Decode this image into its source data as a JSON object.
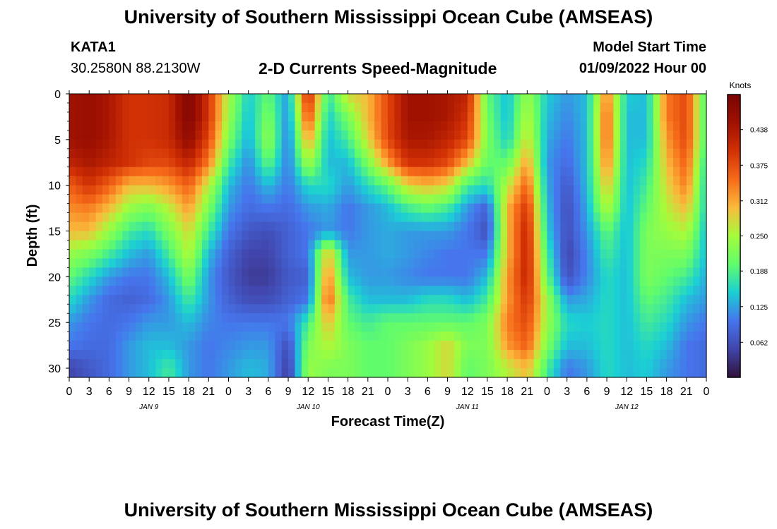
{
  "header": {
    "title": "University of Southern Mississippi Ocean Cube (AMSEAS)",
    "station_id": "KATA1",
    "station_coords": "30.2580N  88.2130W",
    "model_start_label": "Model Start Time",
    "model_start_value": "01/09/2022 Hour 00"
  },
  "footer": {
    "title": "University of Southern Mississippi Ocean Cube (AMSEAS)"
  },
  "chart_data": {
    "type": "heatmap",
    "title": "2-D Currents Speed-Magnitude",
    "xlabel": "Forecast Time(Z)",
    "ylabel": "Depth (ft)",
    "colorbar_label": "Knots",
    "x_hours": [
      0,
      3,
      6,
      9,
      12,
      15,
      18,
      21,
      24,
      27,
      30,
      33,
      36,
      39,
      42,
      45,
      48,
      51,
      54,
      57,
      60,
      63,
      66,
      69,
      72,
      75,
      78,
      81,
      84,
      87,
      90,
      93,
      96
    ],
    "depth_ft": [
      0,
      2.5,
      5,
      7.5,
      10,
      12.5,
      15,
      17.5,
      20,
      22.5,
      25,
      27.5,
      30
    ],
    "x_tick_labels": [
      "0",
      "3",
      "6",
      "9",
      "12",
      "15",
      "18",
      "21",
      "0",
      "3",
      "6",
      "9",
      "12",
      "15",
      "18",
      "21",
      "0",
      "3",
      "6",
      "9",
      "12",
      "15",
      "18",
      "21",
      "0",
      "3",
      "6",
      "9",
      "12",
      "15",
      "18",
      "21",
      "0"
    ],
    "day_labels": [
      {
        "hour": 12,
        "label": "JAN 9"
      },
      {
        "hour": 36,
        "label": "JAN 10"
      },
      {
        "hour": 60,
        "label": "JAN 11"
      },
      {
        "hour": 84,
        "label": "JAN 12"
      }
    ],
    "y_ticks": [
      0,
      5,
      10,
      15,
      20,
      25,
      30
    ],
    "ylim": [
      31,
      0
    ],
    "xlim": [
      0,
      96
    ],
    "colorbar_ticks": [
      0.062,
      0.125,
      0.188,
      0.25,
      0.312,
      0.375,
      0.438
    ],
    "colorbar_range": [
      0.0,
      0.5
    ],
    "values": [
      [
        0.45,
        0.46,
        0.44,
        0.4,
        0.4,
        0.41,
        0.49,
        0.4,
        0.25,
        0.15,
        0.2,
        0.12,
        0.42,
        0.17,
        0.28,
        0.3,
        0.38,
        0.45,
        0.45,
        0.44,
        0.42,
        0.2,
        0.14,
        0.24,
        0.15,
        0.12,
        0.14,
        0.34,
        0.15,
        0.14,
        0.34,
        0.38,
        0.18
      ],
      [
        0.45,
        0.46,
        0.44,
        0.4,
        0.4,
        0.41,
        0.49,
        0.4,
        0.24,
        0.14,
        0.22,
        0.11,
        0.38,
        0.15,
        0.22,
        0.3,
        0.38,
        0.45,
        0.45,
        0.44,
        0.4,
        0.21,
        0.14,
        0.26,
        0.14,
        0.11,
        0.14,
        0.36,
        0.14,
        0.14,
        0.34,
        0.38,
        0.18
      ],
      [
        0.45,
        0.46,
        0.44,
        0.4,
        0.4,
        0.41,
        0.47,
        0.38,
        0.22,
        0.13,
        0.24,
        0.1,
        0.32,
        0.14,
        0.18,
        0.28,
        0.38,
        0.44,
        0.44,
        0.42,
        0.38,
        0.22,
        0.15,
        0.28,
        0.13,
        0.1,
        0.14,
        0.36,
        0.14,
        0.14,
        0.32,
        0.38,
        0.18
      ],
      [
        0.42,
        0.44,
        0.42,
        0.4,
        0.38,
        0.38,
        0.42,
        0.34,
        0.18,
        0.11,
        0.2,
        0.1,
        0.25,
        0.14,
        0.14,
        0.22,
        0.32,
        0.4,
        0.4,
        0.38,
        0.3,
        0.2,
        0.2,
        0.32,
        0.12,
        0.09,
        0.14,
        0.34,
        0.14,
        0.16,
        0.3,
        0.36,
        0.16
      ],
      [
        0.36,
        0.4,
        0.36,
        0.3,
        0.3,
        0.32,
        0.36,
        0.26,
        0.14,
        0.1,
        0.14,
        0.1,
        0.16,
        0.16,
        0.12,
        0.16,
        0.2,
        0.28,
        0.3,
        0.28,
        0.18,
        0.16,
        0.26,
        0.36,
        0.13,
        0.07,
        0.14,
        0.3,
        0.14,
        0.18,
        0.28,
        0.34,
        0.15
      ],
      [
        0.33,
        0.34,
        0.3,
        0.24,
        0.22,
        0.26,
        0.32,
        0.22,
        0.12,
        0.09,
        0.1,
        0.09,
        0.12,
        0.13,
        0.1,
        0.12,
        0.14,
        0.18,
        0.2,
        0.18,
        0.12,
        0.08,
        0.3,
        0.4,
        0.14,
        0.06,
        0.13,
        0.26,
        0.14,
        0.2,
        0.26,
        0.3,
        0.15
      ],
      [
        0.3,
        0.3,
        0.24,
        0.18,
        0.16,
        0.22,
        0.28,
        0.18,
        0.1,
        0.07,
        0.06,
        0.08,
        0.1,
        0.12,
        0.1,
        0.12,
        0.13,
        0.12,
        0.12,
        0.12,
        0.1,
        0.06,
        0.3,
        0.42,
        0.15,
        0.06,
        0.12,
        0.2,
        0.14,
        0.22,
        0.24,
        0.26,
        0.14
      ],
      [
        0.24,
        0.22,
        0.18,
        0.14,
        0.12,
        0.18,
        0.26,
        0.14,
        0.08,
        0.05,
        0.05,
        0.08,
        0.1,
        0.3,
        0.12,
        0.12,
        0.13,
        0.12,
        0.11,
        0.1,
        0.1,
        0.1,
        0.3,
        0.42,
        0.18,
        0.05,
        0.11,
        0.18,
        0.14,
        0.22,
        0.22,
        0.22,
        0.14
      ],
      [
        0.2,
        0.16,
        0.12,
        0.1,
        0.1,
        0.14,
        0.22,
        0.12,
        0.07,
        0.04,
        0.04,
        0.07,
        0.08,
        0.34,
        0.14,
        0.12,
        0.12,
        0.11,
        0.1,
        0.1,
        0.1,
        0.14,
        0.32,
        0.42,
        0.2,
        0.06,
        0.11,
        0.16,
        0.14,
        0.22,
        0.2,
        0.18,
        0.13
      ],
      [
        0.16,
        0.12,
        0.09,
        0.08,
        0.09,
        0.12,
        0.18,
        0.12,
        0.08,
        0.06,
        0.06,
        0.08,
        0.1,
        0.36,
        0.18,
        0.14,
        0.14,
        0.14,
        0.16,
        0.16,
        0.14,
        0.18,
        0.32,
        0.4,
        0.24,
        0.12,
        0.13,
        0.16,
        0.14,
        0.2,
        0.18,
        0.14,
        0.12
      ],
      [
        0.12,
        0.1,
        0.09,
        0.1,
        0.12,
        0.12,
        0.14,
        0.11,
        0.1,
        0.1,
        0.1,
        0.1,
        0.18,
        0.3,
        0.2,
        0.18,
        0.2,
        0.2,
        0.2,
        0.2,
        0.2,
        0.22,
        0.34,
        0.38,
        0.24,
        0.16,
        0.15,
        0.16,
        0.14,
        0.18,
        0.16,
        0.12,
        0.1
      ],
      [
        0.1,
        0.09,
        0.09,
        0.12,
        0.14,
        0.14,
        0.12,
        0.1,
        0.11,
        0.12,
        0.12,
        0.06,
        0.22,
        0.26,
        0.22,
        0.2,
        0.2,
        0.22,
        0.24,
        0.28,
        0.22,
        0.22,
        0.32,
        0.36,
        0.22,
        0.14,
        0.14,
        0.16,
        0.14,
        0.16,
        0.14,
        0.1,
        0.09
      ],
      [
        0.05,
        0.07,
        0.09,
        0.12,
        0.14,
        0.18,
        0.12,
        0.1,
        0.12,
        0.14,
        0.13,
        0.04,
        0.24,
        0.22,
        0.22,
        0.2,
        0.2,
        0.22,
        0.24,
        0.28,
        0.2,
        0.22,
        0.26,
        0.3,
        0.18,
        0.1,
        0.12,
        0.16,
        0.14,
        0.15,
        0.12,
        0.1,
        0.09
      ]
    ]
  }
}
